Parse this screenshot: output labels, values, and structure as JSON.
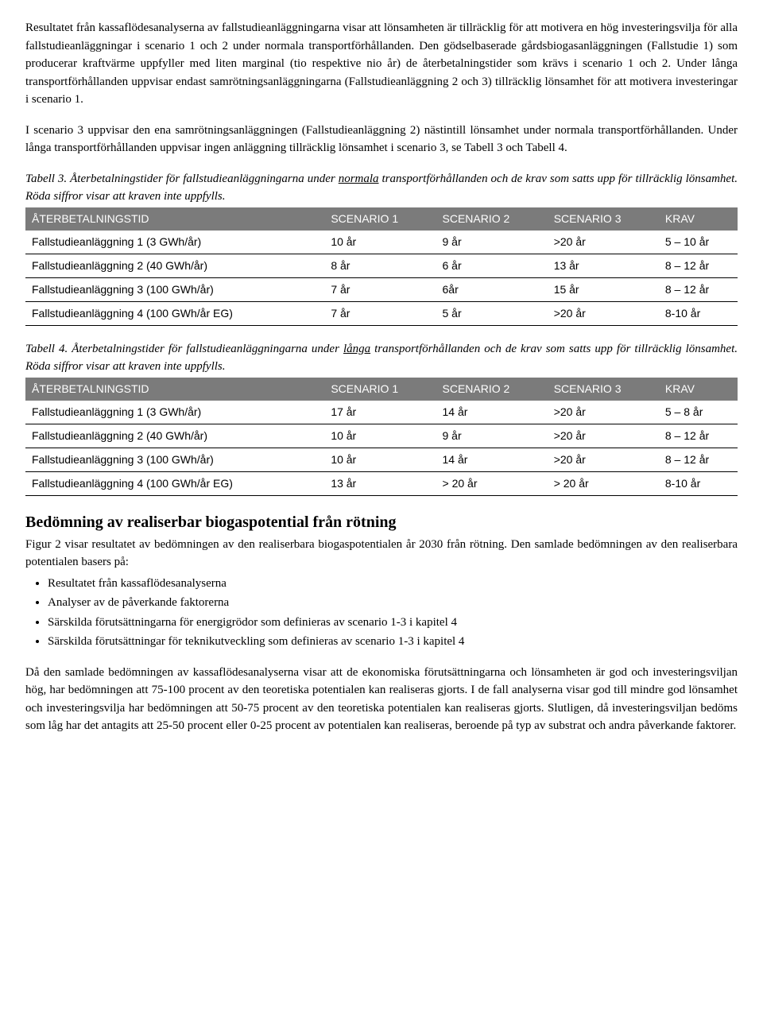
{
  "para1": "Resultatet från kassaflödesanalyserna av fallstudieanläggningarna visar att lönsamheten är tillräcklig för att motivera en hög investeringsvilja för alla fallstudieanläggningar i scenario 1 och 2 under normala transportförhållanden. Den gödselbaserade gårdsbiogasanläggningen (Fallstudie 1) som producerar kraftvärme uppfyller med liten marginal (tio respektive nio år) de återbetalningstider som krävs i scenario 1 och 2. Under långa transportförhållanden uppvisar endast samrötningsanläggningarna (Fallstudieanläggning 2 och 3) tillräcklig lönsamhet för att motivera investeringar i scenario 1.",
  "para2": "I scenario 3 uppvisar den ena samrötningsanläggningen (Fallstudieanläggning 2) nästintill lönsamhet under normala transportförhållanden. Under långa transportförhållanden uppvisar ingen anläggning tillräcklig lönsamhet i scenario 3, se Tabell 3 och Tabell 4.",
  "table3": {
    "caption_prefix": "Tabell 3. Återbetalningstider för fallstudieanläggningarna under ",
    "caption_underline": "normala",
    "caption_suffix": " transportförhållanden och de krav som satts upp för tillräcklig lönsamhet. Röda siffror visar att kraven inte uppfylls.",
    "headers": [
      "ÅTERBETALNINGSTID",
      "SCENARIO 1",
      "SCENARIO 2",
      "SCENARIO 3",
      "KRAV"
    ],
    "rows": [
      [
        "Fallstudieanläggning 1 (3 GWh/år)",
        "10 år",
        "9 år",
        ">20 år",
        "5 – 10 år"
      ],
      [
        "Fallstudieanläggning 2 (40 GWh/år)",
        "8 år",
        "6 år",
        "13 år",
        "8 – 12 år"
      ],
      [
        "Fallstudieanläggning 3 (100 GWh/år)",
        "7 år",
        "6år",
        "15 år",
        "8 – 12 år"
      ],
      [
        "Fallstudieanläggning 4 (100 GWh/år EG)",
        "7 år",
        "5 år",
        ">20 år",
        "8-10 år"
      ]
    ]
  },
  "table4": {
    "caption_prefix": "Tabell 4. Återbetalningstider för fallstudieanläggningarna under ",
    "caption_underline": "långa",
    "caption_suffix": " transportförhållanden och de krav som satts upp för tillräcklig lönsamhet. Röda siffror visar att kraven inte uppfylls.",
    "headers": [
      "ÅTERBETALNINGSTID",
      "SCENARIO 1",
      "SCENARIO 2",
      "SCENARIO 3",
      "KRAV"
    ],
    "rows": [
      [
        "Fallstudieanläggning 1 (3 GWh/år)",
        "17 år",
        "14 år",
        ">20 år",
        "5 – 8 år"
      ],
      [
        "Fallstudieanläggning 2 (40 GWh/år)",
        "10 år",
        "9 år",
        ">20 år",
        "8 – 12 år"
      ],
      [
        "Fallstudieanläggning 3 (100 GWh/år)",
        "10 år",
        "14 år",
        ">20 år",
        "8 – 12 år"
      ],
      [
        "Fallstudieanläggning 4 (100 GWh/år EG)",
        "13 år",
        "> 20 år",
        "> 20 år",
        "8-10 år"
      ]
    ]
  },
  "heading": "Bedömning av realiserbar biogaspotential från rötning",
  "para3": "Figur 2 visar resultatet av bedömningen av den realiserbara biogaspotentialen år 2030 från rötning. Den samlade bedömningen av den realiserbara potentialen basers på:",
  "bullets": [
    "Resultatet från kassaflödesanalyserna",
    "Analyser av de påverkande faktorerna",
    "Särskilda förutsättningarna för energigrödor som definieras av scenario 1-3 i kapitel 4",
    "Särskilda förutsättningar för teknikutveckling som definieras av scenario 1-3 i kapitel 4"
  ],
  "para4": "Då den samlade bedömningen av kassaflödesanalyserna visar att de ekonomiska förutsättningarna och lönsamheten är god och investeringsviljan hög, har bedömningen att 75-100 procent av den teoretiska potentialen kan realiseras gjorts. I de fall analyserna visar god till mindre god lönsamhet och investeringsvilja har bedömningen att 50-75 procent av den teoretiska potentialen kan realiseras gjorts. Slutligen, då investeringsviljan bedöms som låg har det antagits att 25-50 procent eller 0-25 procent av potentialen kan realiseras, beroende på typ av substrat och andra påverkande faktorer."
}
